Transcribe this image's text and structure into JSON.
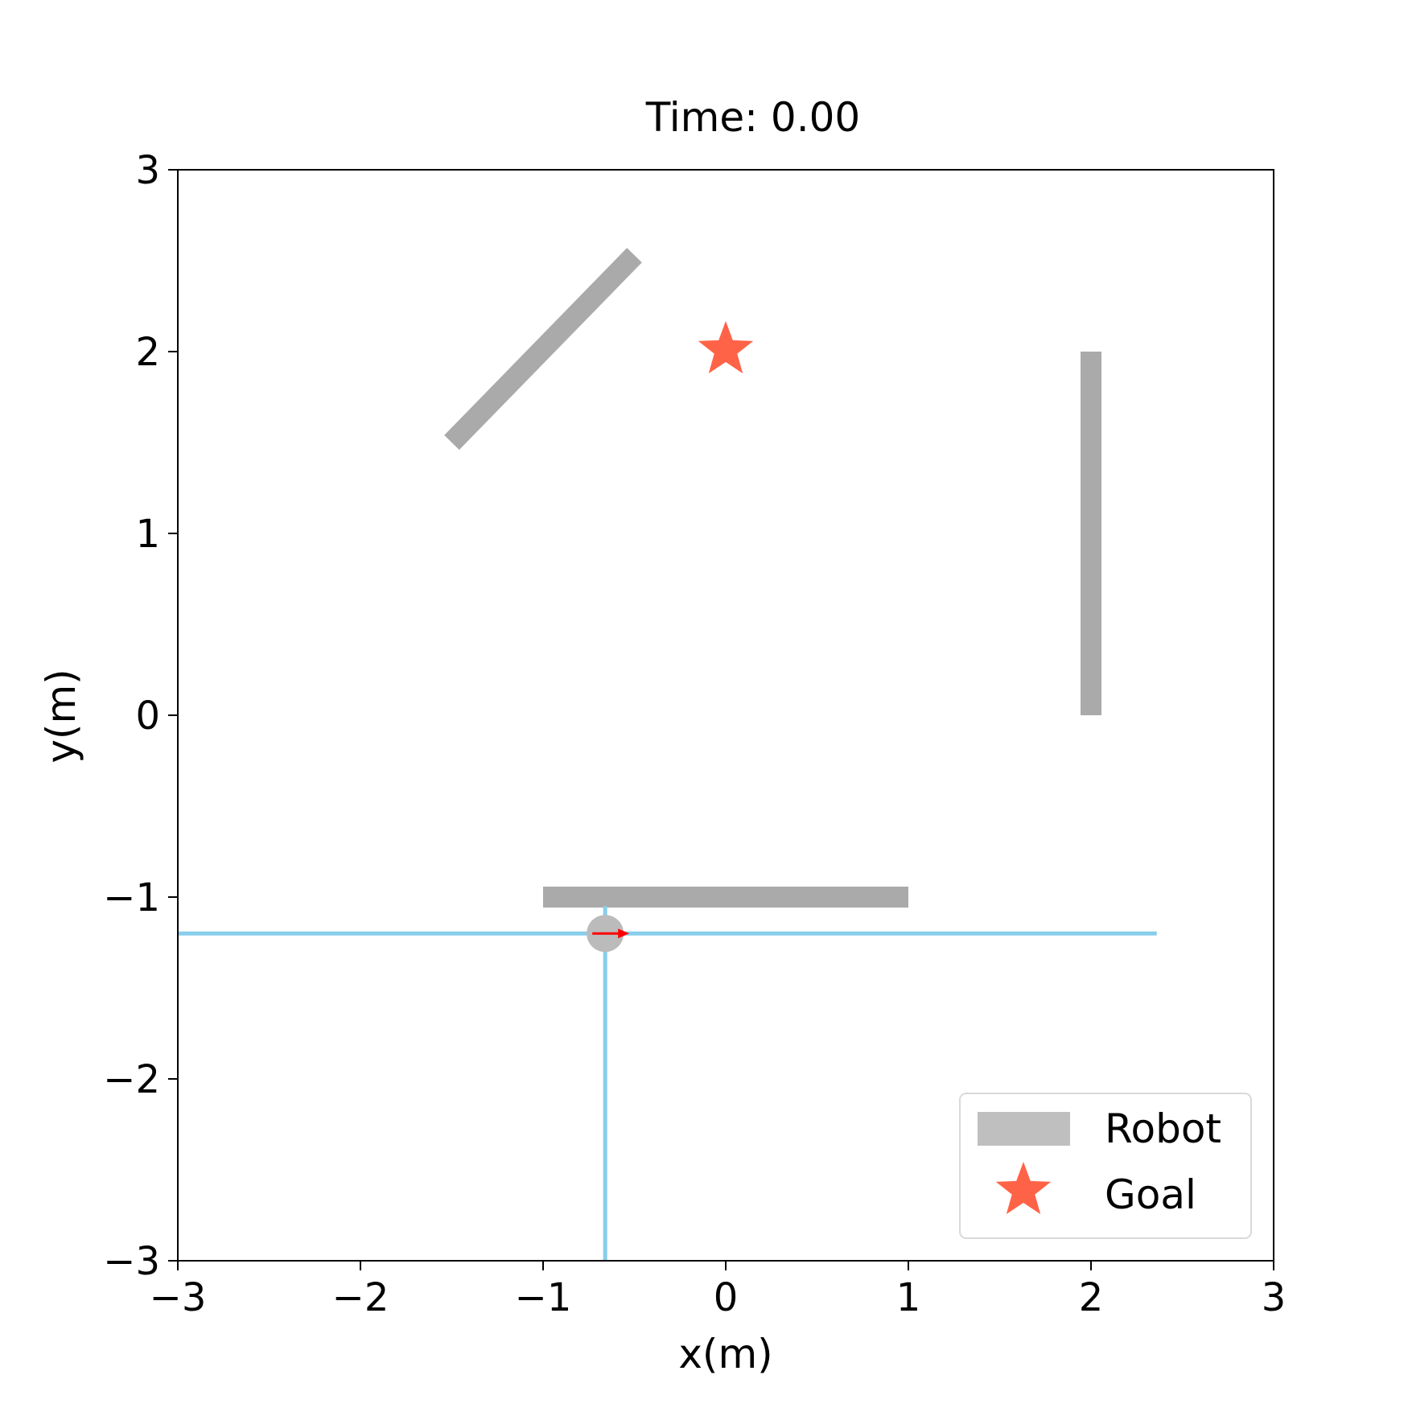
{
  "chart_data": {
    "type": "scatter",
    "title": "Time: 0.00",
    "xlabel": "x(m)",
    "ylabel": "y(m)",
    "xlim": [
      -3,
      3
    ],
    "ylim": [
      -3,
      3
    ],
    "grid": false,
    "x_ticks": [
      {
        "value": -3,
        "label": "−3"
      },
      {
        "value": -2,
        "label": "−2"
      },
      {
        "value": -1,
        "label": "−1"
      },
      {
        "value": 0,
        "label": "0"
      },
      {
        "value": 1,
        "label": "1"
      },
      {
        "value": 2,
        "label": "2"
      },
      {
        "value": 3,
        "label": "3"
      }
    ],
    "y_ticks": [
      {
        "value": -3,
        "label": "−3"
      },
      {
        "value": -2,
        "label": "−2"
      },
      {
        "value": -1,
        "label": "−1"
      },
      {
        "value": 0,
        "label": "0"
      },
      {
        "value": 1,
        "label": "1"
      },
      {
        "value": 2,
        "label": "2"
      },
      {
        "value": 3,
        "label": "3"
      }
    ],
    "obstacles": [
      {
        "name": "diagonal",
        "x1": -1.5,
        "y1": 1.5,
        "x2": -0.5,
        "y2": 2.53
      },
      {
        "name": "vertical",
        "x1": 2.0,
        "y1": 0.0,
        "x2": 2.0,
        "y2": 2.0
      },
      {
        "name": "horizontal",
        "x1": -1.0,
        "y1": -1.0,
        "x2": 1.0,
        "y2": -1.0
      }
    ],
    "obstacle_color": "#aaaaaa",
    "goal": {
      "x": 0.0,
      "y": 2.0,
      "color": "#ff6347"
    },
    "robot": {
      "x": -0.66,
      "y": -1.2,
      "radius": 0.1,
      "heading_deg": 0,
      "color": "#bbbbbb",
      "arrow_color": "#ff0000"
    },
    "sensor_rays": {
      "color": "#87ceeb",
      "horizontal": {
        "x_start": -3.0,
        "x_end": 2.36,
        "y": -1.2
      },
      "vertical": {
        "x": -0.66,
        "y_start": -3.0,
        "y_end": -1.05
      }
    },
    "legend": {
      "position": "lower-right",
      "entries": [
        {
          "label": "Robot",
          "marker": "patch",
          "color": "#bfbfbf"
        },
        {
          "label": "Goal",
          "marker": "star",
          "color": "#ff6347"
        }
      ]
    }
  }
}
